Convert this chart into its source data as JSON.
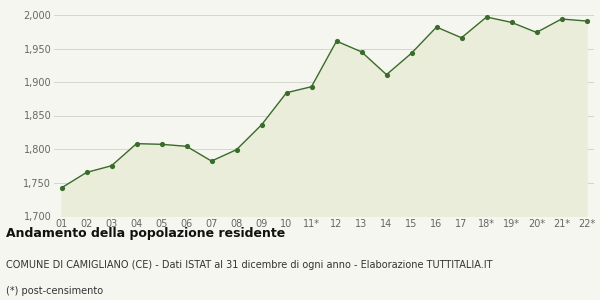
{
  "x_labels": [
    "01",
    "02",
    "03",
    "04",
    "05",
    "06",
    "07",
    "08",
    "09",
    "10",
    "11*",
    "12",
    "13",
    "14",
    "15",
    "16",
    "17",
    "18*",
    "19*",
    "20*",
    "21*",
    "22*"
  ],
  "y_values": [
    1742,
    1765,
    1775,
    1808,
    1807,
    1804,
    1782,
    1799,
    1836,
    1884,
    1893,
    1961,
    1945,
    1911,
    1943,
    1982,
    1966,
    1997,
    1989,
    1974,
    1994,
    1991
  ],
  "line_color": "#3a6b2a",
  "fill_color": "#e9edd9",
  "marker_color": "#3a6b2a",
  "bg_color": "#f6f6f0",
  "grid_color": "#d0d0c8",
  "ylim": [
    1700,
    2000
  ],
  "yticks": [
    1700,
    1750,
    1800,
    1850,
    1900,
    1950,
    2000
  ],
  "title": "Andamento della popolazione residente",
  "subtitle": "COMUNE DI CAMIGLIANO (CE) - Dati ISTAT al 31 dicembre di ogni anno - Elaborazione TUTTITALIA.IT",
  "footnote": "(*) post-censimento",
  "title_fontsize": 9,
  "subtitle_fontsize": 7,
  "footnote_fontsize": 7,
  "tick_fontsize": 7
}
